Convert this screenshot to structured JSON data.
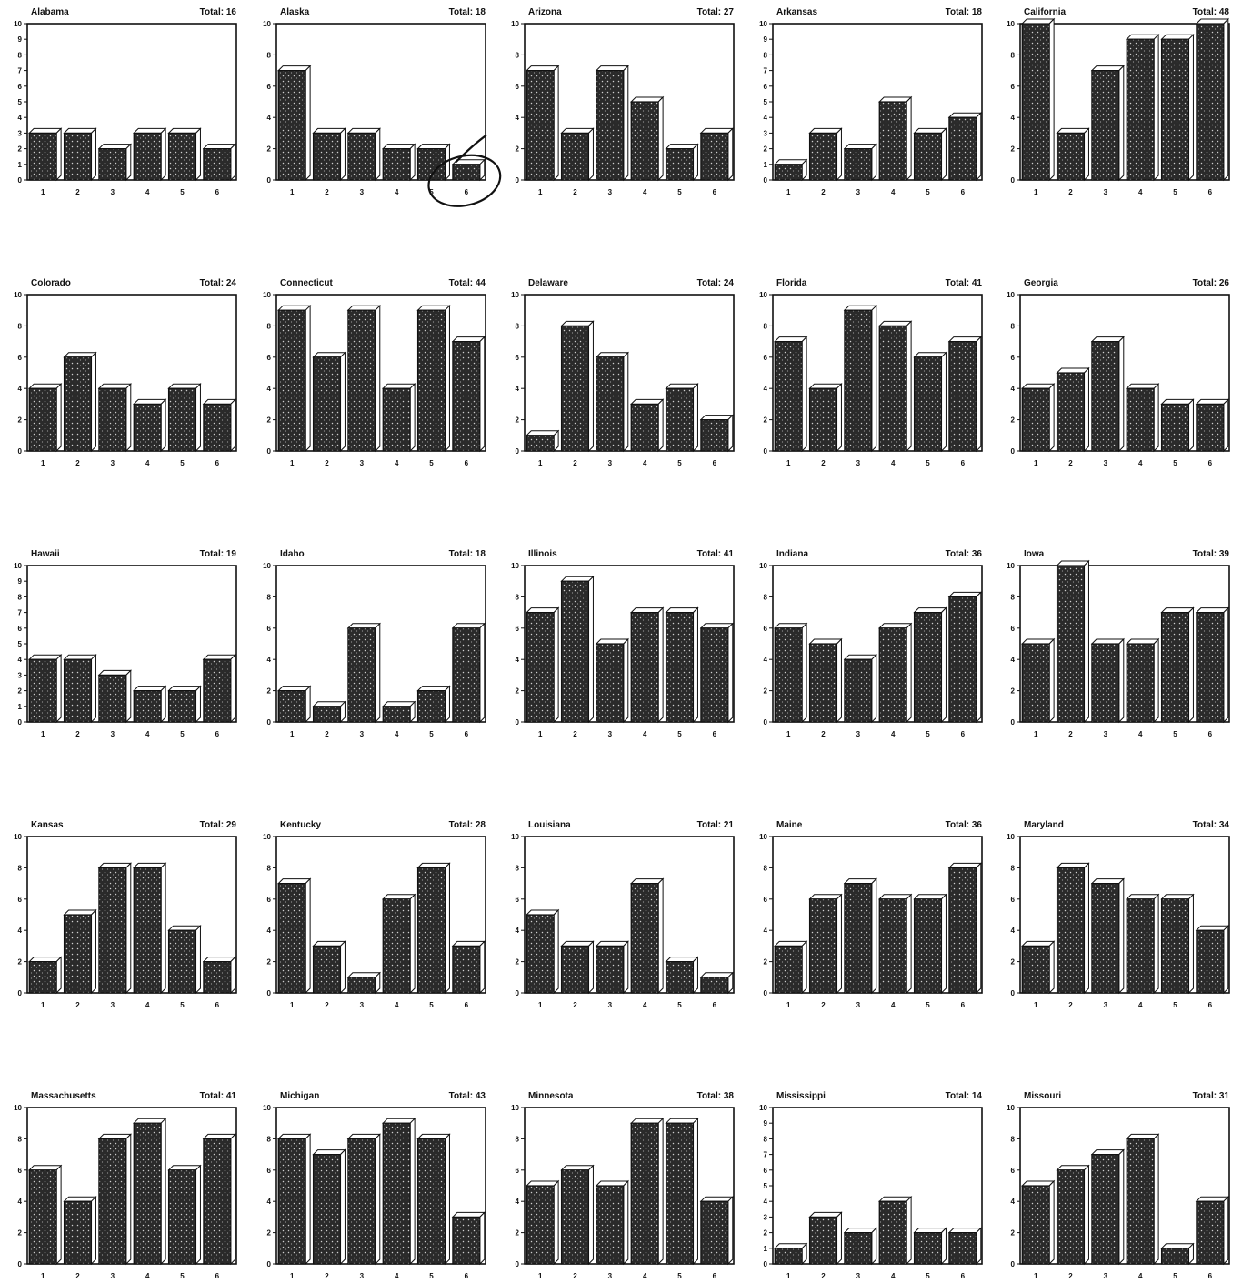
{
  "chart_data": [
    {
      "type": "bar",
      "title": "Alabama",
      "total": "Total: 16",
      "categories": [
        "1",
        "2",
        "3",
        "4",
        "5",
        "6"
      ],
      "values": [
        3,
        3,
        2,
        3,
        3,
        2
      ],
      "ylim": [
        0,
        10
      ],
      "yticks": [
        "0",
        "1",
        "2",
        "3",
        "4",
        "5",
        "6",
        "7",
        "8",
        "9",
        "10"
      ],
      "grid": false
    },
    {
      "type": "bar",
      "title": "Alaska",
      "total": "Total: 18",
      "categories": [
        "1",
        "2",
        "3",
        "4",
        "5",
        "6"
      ],
      "values": [
        7,
        3,
        3,
        2,
        2,
        1
      ],
      "ylim": [
        0,
        10
      ],
      "yticks": [
        "0",
        "2",
        "4",
        "6",
        "8",
        "10"
      ],
      "grid": false,
      "annotation": "hand-drawn circle around bar 6"
    },
    {
      "type": "bar",
      "title": "Arizona",
      "total": "Total: 27",
      "categories": [
        "1",
        "2",
        "3",
        "4",
        "5",
        "6"
      ],
      "values": [
        7,
        3,
        7,
        5,
        2,
        3
      ],
      "ylim": [
        0,
        10
      ],
      "yticks": [
        "0",
        "2",
        "4",
        "6",
        "8",
        "10"
      ],
      "grid": false
    },
    {
      "type": "bar",
      "title": "Arkansas",
      "total": "Total: 18",
      "categories": [
        "1",
        "2",
        "3",
        "4",
        "5",
        "6"
      ],
      "values": [
        1,
        3,
        2,
        5,
        3,
        4
      ],
      "ylim": [
        0,
        10
      ],
      "yticks": [
        "0",
        "1",
        "2",
        "3",
        "4",
        "5",
        "6",
        "7",
        "8",
        "9",
        "10"
      ],
      "grid": false
    },
    {
      "type": "bar",
      "title": "California",
      "total": "Total: 48",
      "categories": [
        "1",
        "2",
        "3",
        "4",
        "5",
        "6"
      ],
      "values": [
        10,
        3,
        7,
        9,
        9,
        10
      ],
      "ylim": [
        0,
        10
      ],
      "yticks": [
        "0",
        "2",
        "4",
        "6",
        "8",
        "10"
      ],
      "grid": false
    },
    {
      "type": "bar",
      "title": "Colorado",
      "total": "Total: 24",
      "categories": [
        "1",
        "2",
        "3",
        "4",
        "5",
        "6"
      ],
      "values": [
        4,
        6,
        4,
        3,
        4,
        3
      ],
      "ylim": [
        0,
        10
      ],
      "yticks": [
        "0",
        "2",
        "4",
        "6",
        "8",
        "10"
      ],
      "grid": false
    },
    {
      "type": "bar",
      "title": "Connecticut",
      "total": "Total: 44",
      "categories": [
        "1",
        "2",
        "3",
        "4",
        "5",
        "6"
      ],
      "values": [
        9,
        6,
        9,
        4,
        9,
        7
      ],
      "ylim": [
        0,
        10
      ],
      "yticks": [
        "0",
        "2",
        "4",
        "6",
        "8",
        "10"
      ],
      "grid": false
    },
    {
      "type": "bar",
      "title": "Delaware",
      "total": "Total: 24",
      "categories": [
        "1",
        "2",
        "3",
        "4",
        "5",
        "6"
      ],
      "values": [
        1,
        8,
        6,
        3,
        4,
        2
      ],
      "ylim": [
        0,
        10
      ],
      "yticks": [
        "0",
        "2",
        "4",
        "6",
        "8",
        "10"
      ],
      "grid": false
    },
    {
      "type": "bar",
      "title": "Florida",
      "total": "Total: 41",
      "categories": [
        "1",
        "2",
        "3",
        "4",
        "5",
        "6"
      ],
      "values": [
        7,
        4,
        9,
        8,
        6,
        7
      ],
      "ylim": [
        0,
        10
      ],
      "yticks": [
        "0",
        "2",
        "4",
        "6",
        "8",
        "10"
      ],
      "grid": false
    },
    {
      "type": "bar",
      "title": "Georgia",
      "total": "Total: 26",
      "categories": [
        "1",
        "2",
        "3",
        "4",
        "5",
        "6"
      ],
      "values": [
        4,
        5,
        7,
        4,
        3,
        3
      ],
      "ylim": [
        0,
        10
      ],
      "yticks": [
        "0",
        "2",
        "4",
        "6",
        "8",
        "10"
      ],
      "grid": false
    },
    {
      "type": "bar",
      "title": "Hawaii",
      "total": "Total: 19",
      "categories": [
        "1",
        "2",
        "3",
        "4",
        "5",
        "6"
      ],
      "values": [
        4,
        4,
        3,
        2,
        2,
        4
      ],
      "ylim": [
        0,
        10
      ],
      "yticks": [
        "0",
        "1",
        "2",
        "3",
        "4",
        "5",
        "6",
        "7",
        "8",
        "9",
        "10"
      ],
      "grid": false
    },
    {
      "type": "bar",
      "title": "Idaho",
      "total": "Total: 18",
      "categories": [
        "1",
        "2",
        "3",
        "4",
        "5",
        "6"
      ],
      "values": [
        2,
        1,
        6,
        1,
        2,
        6
      ],
      "ylim": [
        0,
        10
      ],
      "yticks": [
        "0",
        "2",
        "4",
        "6",
        "8",
        "10"
      ],
      "grid": false
    },
    {
      "type": "bar",
      "title": "Illinois",
      "total": "Total: 41",
      "categories": [
        "1",
        "2",
        "3",
        "4",
        "5",
        "6"
      ],
      "values": [
        7,
        9,
        5,
        7,
        7,
        6
      ],
      "ylim": [
        0,
        10
      ],
      "yticks": [
        "0",
        "2",
        "4",
        "6",
        "8",
        "10"
      ],
      "grid": false
    },
    {
      "type": "bar",
      "title": "Indiana",
      "total": "Total: 36",
      "categories": [
        "1",
        "2",
        "3",
        "4",
        "5",
        "6"
      ],
      "values": [
        6,
        5,
        4,
        6,
        7,
        8
      ],
      "ylim": [
        0,
        10
      ],
      "yticks": [
        "0",
        "2",
        "4",
        "6",
        "8",
        "10"
      ],
      "grid": false
    },
    {
      "type": "bar",
      "title": "Iowa",
      "total": "Total: 39",
      "categories": [
        "1",
        "2",
        "3",
        "4",
        "5",
        "6"
      ],
      "values": [
        5,
        10,
        5,
        5,
        7,
        7
      ],
      "ylim": [
        0,
        10
      ],
      "yticks": [
        "0",
        "2",
        "4",
        "6",
        "8",
        "10"
      ],
      "grid": false
    },
    {
      "type": "bar",
      "title": "Kansas",
      "total": "Total: 29",
      "categories": [
        "1",
        "2",
        "3",
        "4",
        "5",
        "6"
      ],
      "values": [
        2,
        5,
        8,
        8,
        4,
        2
      ],
      "ylim": [
        0,
        10
      ],
      "yticks": [
        "0",
        "2",
        "4",
        "6",
        "8",
        "10"
      ],
      "grid": false
    },
    {
      "type": "bar",
      "title": "Kentucky",
      "total": "Total: 28",
      "categories": [
        "1",
        "2",
        "3",
        "4",
        "5",
        "6"
      ],
      "values": [
        7,
        3,
        1,
        6,
        8,
        3
      ],
      "ylim": [
        0,
        10
      ],
      "yticks": [
        "0",
        "2",
        "4",
        "6",
        "8",
        "10"
      ],
      "grid": false
    },
    {
      "type": "bar",
      "title": "Louisiana",
      "total": "Total: 21",
      "categories": [
        "1",
        "2",
        "3",
        "4",
        "5",
        "6"
      ],
      "values": [
        5,
        3,
        3,
        7,
        2,
        1
      ],
      "ylim": [
        0,
        10
      ],
      "yticks": [
        "0",
        "2",
        "4",
        "6",
        "8",
        "10"
      ],
      "grid": false
    },
    {
      "type": "bar",
      "title": "Maine",
      "total": "Total: 36",
      "categories": [
        "1",
        "2",
        "3",
        "4",
        "5",
        "6"
      ],
      "values": [
        3,
        6,
        7,
        6,
        6,
        8
      ],
      "ylim": [
        0,
        10
      ],
      "yticks": [
        "0",
        "2",
        "4",
        "6",
        "8",
        "10"
      ],
      "grid": false
    },
    {
      "type": "bar",
      "title": "Maryland",
      "total": "Total: 34",
      "categories": [
        "1",
        "2",
        "3",
        "4",
        "5",
        "6"
      ],
      "values": [
        3,
        8,
        7,
        6,
        6,
        4
      ],
      "ylim": [
        0,
        10
      ],
      "yticks": [
        "0",
        "2",
        "4",
        "6",
        "8",
        "10"
      ],
      "grid": false
    },
    {
      "type": "bar",
      "title": "Massachusetts",
      "total": "Total: 41",
      "categories": [
        "1",
        "2",
        "3",
        "4",
        "5",
        "6"
      ],
      "values": [
        6,
        4,
        8,
        9,
        6,
        8
      ],
      "ylim": [
        0,
        10
      ],
      "yticks": [
        "0",
        "2",
        "4",
        "6",
        "8",
        "10"
      ],
      "grid": false
    },
    {
      "type": "bar",
      "title": "Michigan",
      "total": "Total: 43",
      "categories": [
        "1",
        "2",
        "3",
        "4",
        "5",
        "6"
      ],
      "values": [
        8,
        7,
        8,
        9,
        8,
        3
      ],
      "ylim": [
        0,
        10
      ],
      "yticks": [
        "0",
        "2",
        "4",
        "6",
        "8",
        "10"
      ],
      "grid": false
    },
    {
      "type": "bar",
      "title": "Minnesota",
      "total": "Total: 38",
      "categories": [
        "1",
        "2",
        "3",
        "4",
        "5",
        "6"
      ],
      "values": [
        5,
        6,
        5,
        9,
        9,
        4
      ],
      "ylim": [
        0,
        10
      ],
      "yticks": [
        "0",
        "2",
        "4",
        "6",
        "8",
        "10"
      ],
      "grid": false
    },
    {
      "type": "bar",
      "title": "Mississippi",
      "total": "Total: 14",
      "categories": [
        "1",
        "2",
        "3",
        "4",
        "5",
        "6"
      ],
      "values": [
        1,
        3,
        2,
        4,
        2,
        2
      ],
      "ylim": [
        0,
        10
      ],
      "yticks": [
        "0",
        "1",
        "2",
        "3",
        "4",
        "5",
        "6",
        "7",
        "8",
        "9",
        "10"
      ],
      "grid": false
    },
    {
      "type": "bar",
      "title": "Missouri",
      "total": "Total: 31",
      "categories": [
        "1",
        "2",
        "3",
        "4",
        "5",
        "6"
      ],
      "values": [
        5,
        6,
        7,
        8,
        1,
        4
      ],
      "ylim": [
        0,
        10
      ],
      "yticks": [
        "0",
        "2",
        "4",
        "6",
        "8",
        "10"
      ],
      "grid": false
    }
  ]
}
